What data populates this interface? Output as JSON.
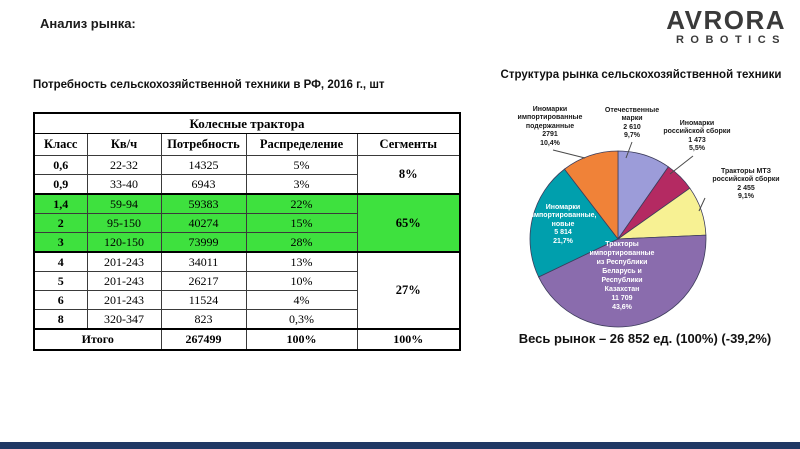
{
  "page": {
    "heading": "Анализ рынка:"
  },
  "logo": {
    "name": "AVRORA",
    "sub": "ROBOTICS"
  },
  "table": {
    "title": "Потребность сельскохозяйственной техники в РФ, 2016 г., шт",
    "group_header": "Колесные трактора",
    "columns": [
      "Класс",
      "Кв/ч",
      "Потребность",
      "Распределение",
      "Сегменты"
    ],
    "rows": [
      {
        "cls": "0,6",
        "power": "22-32",
        "need": "14325",
        "share": "5%"
      },
      {
        "cls": "0,9",
        "power": "33-40",
        "need": "6943",
        "share": "3%"
      },
      {
        "cls": "1,4",
        "power": "59-94",
        "need": "59383",
        "share": "22%"
      },
      {
        "cls": "2",
        "power": "95-150",
        "need": "40274",
        "share": "15%"
      },
      {
        "cls": "3",
        "power": "120-150",
        "need": "73999",
        "share": "28%"
      },
      {
        "cls": "4",
        "power": "201-243",
        "need": "34011",
        "share": "13%"
      },
      {
        "cls": "5",
        "power": "201-243",
        "need": "26217",
        "share": "10%"
      },
      {
        "cls": "6",
        "power": "201-243",
        "need": "11524",
        "share": "4%"
      },
      {
        "cls": "8",
        "power": "320-347",
        "need": "823",
        "share": "0,3%"
      }
    ],
    "segments": {
      "s1": "8%",
      "s2": "65%",
      "s3": "27%"
    },
    "total": {
      "label": "Итого",
      "need": "267499",
      "share": "100%",
      "segment": "100%"
    },
    "highlight_color": "#3EE13E"
  },
  "chart_data": {
    "type": "pie",
    "title": "Структура рынка сельскохозяйственной техники",
    "total": 26852,
    "total_text": "Весь рынок – 26 852 ед. (100%) (-39,2%)",
    "start_at": "top",
    "direction": "clockwise",
    "slices": [
      {
        "name": "Отечественные марки",
        "value": 2610,
        "pct": 9.7,
        "color": "#9C9CD9",
        "value_text": "2 610",
        "pct_text": "9,7%",
        "label_placement": "outside",
        "label_lines": [
          "Отечественные",
          "марки",
          "2 610",
          "9,7%"
        ]
      },
      {
        "name": "Иномарки российской сборки",
        "value": 1473,
        "pct": 5.5,
        "color": "#B42A62",
        "value_text": "1 473",
        "pct_text": "5,5%",
        "label_placement": "outside",
        "label_lines": [
          "Иномарки",
          "российской сборки",
          "1 473",
          "5,5%"
        ]
      },
      {
        "name": "Тракторы МТЗ российской сборки",
        "value": 2455,
        "pct": 9.1,
        "color": "#F7F193",
        "value_text": "2 455",
        "pct_text": "9,1%",
        "label_placement": "outside",
        "label_lines": [
          "Тракторы МТЗ",
          "российской сборки",
          "2 455",
          "9,1%"
        ]
      },
      {
        "name": "Тракторы импортированные из Республики Беларусь и Республики Казахстан",
        "value": 11709,
        "pct": 43.6,
        "color": "#8A6CAD",
        "value_text": "11 709",
        "pct_text": "43,6%",
        "label_placement": "inside",
        "label_color": "#FFFFFF",
        "label_lines": [
          "Тракторы",
          "импортированные",
          "из Республики",
          "Беларусь и",
          "Республики",
          "Казахстан",
          "11 709",
          "43,6%"
        ]
      },
      {
        "name": "Иномарки импортированные, новые",
        "value": 5814,
        "pct": 21.7,
        "color": "#009FAD",
        "value_text": "5 814",
        "pct_text": "21,7%",
        "label_placement": "inside",
        "label_color": "#FFFFFF",
        "label_lines": [
          "Иномарки",
          "импортированные,",
          "новые",
          "5 814",
          "21,7%"
        ]
      },
      {
        "name": "Иномарки импортированные подержанные",
        "value": 2791,
        "pct": 10.4,
        "color": "#F08238",
        "value_text": "2791",
        "pct_text": "10,4%",
        "label_placement": "outside",
        "label_lines": [
          "Иномарки",
          "импортированные",
          "подержанные",
          "2791",
          "10,4%"
        ]
      }
    ],
    "pie_outline_color": "#3D3D5C"
  },
  "footer": {
    "color": "#1F3864"
  }
}
